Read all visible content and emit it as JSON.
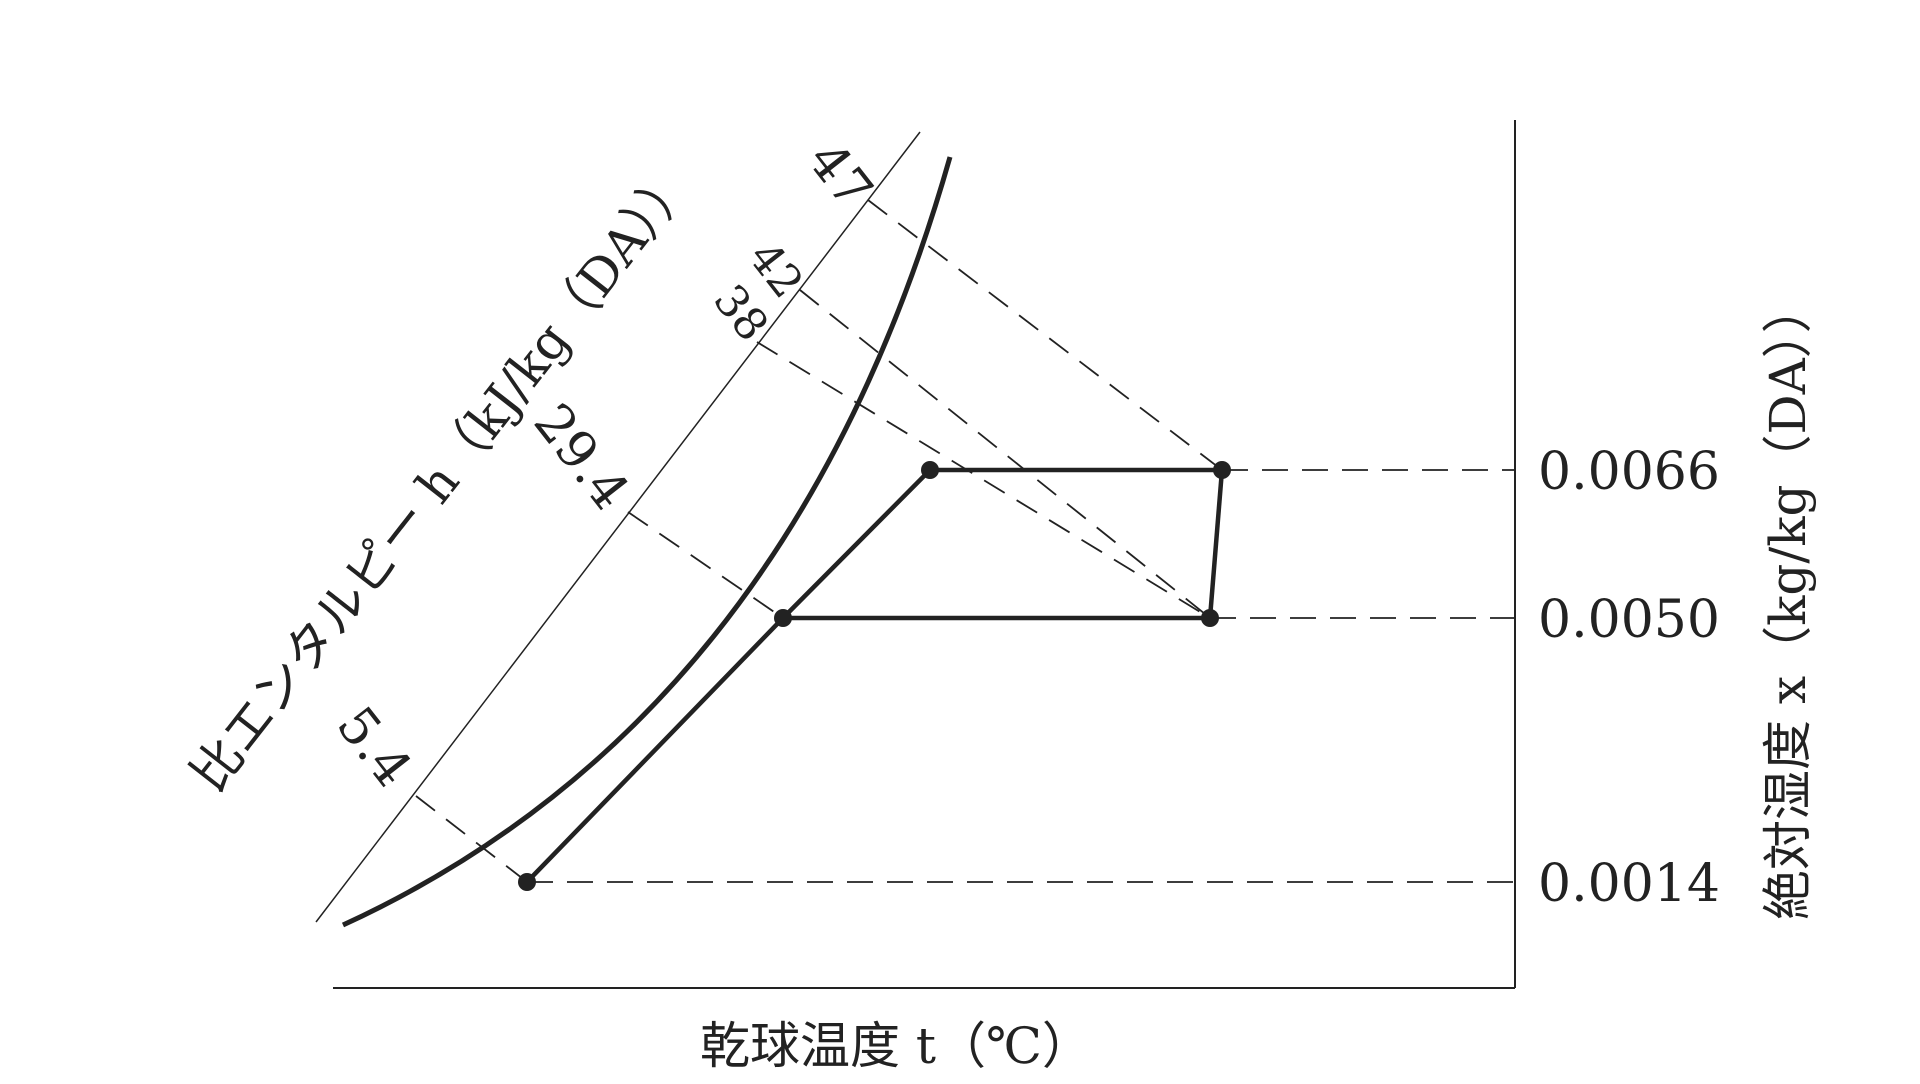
{
  "diagram": {
    "x_axis_title": "乾球温度 t（℃）",
    "y_axis_title": "絶対湿度 x（kg/kg（DA））",
    "enthalpy_axis_title": "比エンタルピー h（kJ/kg（DA））",
    "humidity_ticks": [
      "0.0066",
      "0.0050",
      "0.0014"
    ],
    "enthalpy_ticks": [
      "47",
      "42",
      "38",
      "29.4",
      "5.4"
    ],
    "colors": {
      "ink": "#222222",
      "background": "#ffffff"
    }
  }
}
